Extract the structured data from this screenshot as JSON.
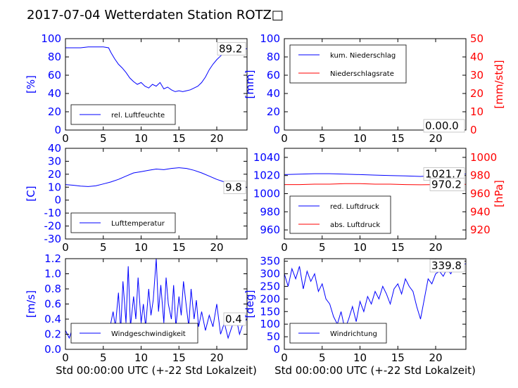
{
  "title": "2017-07-04 Wetterdaten Station ROTZ□",
  "colors": {
    "primary": "#0000ff",
    "secondary": "#ff0000",
    "axis": "#000000"
  },
  "chart_data": [
    {
      "id": "humidity",
      "type": "line",
      "ylabel": "[%]",
      "ylim": [
        0,
        100
      ],
      "yticks": [
        0,
        20,
        40,
        60,
        80,
        100
      ],
      "xlim": [
        0,
        24
      ],
      "xticks": [
        0,
        5,
        10,
        15,
        20
      ],
      "legend": [
        "rel. Luftfeuchte"
      ],
      "legend_position": "lower-left",
      "last_value": "89.2",
      "series": [
        {
          "name": "rel. Luftfeuchte",
          "color": "#0000ff",
          "x": [
            0,
            1,
            2,
            3,
            4,
            5,
            5.7,
            6,
            6.5,
            7,
            7.5,
            8,
            8.5,
            9,
            9.5,
            10,
            10.5,
            11,
            11.5,
            12,
            12.5,
            13,
            13.5,
            14,
            14.5,
            15,
            15.5,
            16,
            16.5,
            17,
            17.5,
            18,
            18.5,
            19,
            19.5,
            20,
            20.5,
            21,
            21.5,
            22,
            23,
            24
          ],
          "y": [
            90,
            90,
            90,
            91,
            91,
            91,
            90,
            85,
            78,
            72,
            68,
            63,
            57,
            53,
            50,
            52,
            48,
            46,
            50,
            48,
            52,
            45,
            47,
            44,
            42,
            43,
            42,
            43,
            44,
            46,
            48,
            52,
            58,
            66,
            72,
            77,
            81,
            85,
            86,
            87,
            88,
            89
          ]
        }
      ]
    },
    {
      "id": "precipitation",
      "type": "line",
      "ylabel": "[mm]",
      "ylabel_right": "[mm/std]",
      "ylim": [
        0,
        100
      ],
      "yticks": [
        0,
        20,
        40,
        60,
        80,
        100
      ],
      "ylim_right": [
        0,
        50
      ],
      "yticks_right": [
        0,
        10,
        20,
        30,
        40,
        50
      ],
      "xlim": [
        0,
        24
      ],
      "xticks": [
        0,
        5,
        10,
        15,
        20
      ],
      "legend": [
        "kum. Niederschlag",
        "Niederschlagsrate"
      ],
      "legend_position": "upper-left",
      "last_value": "0.0",
      "last_value_right": "0.0",
      "series": [
        {
          "name": "kum. Niederschlag",
          "color": "#0000ff",
          "x": [
            0,
            24
          ],
          "y": [
            0,
            0
          ]
        },
        {
          "name": "Niederschlagsrate",
          "color": "#ff0000",
          "axis": "right",
          "x": [
            0,
            24
          ],
          "y": [
            0,
            0
          ]
        }
      ]
    },
    {
      "id": "temperature",
      "type": "line",
      "ylabel": "[C]",
      "ylim": [
        -30,
        40
      ],
      "yticks": [
        -30,
        -20,
        -10,
        0,
        10,
        20,
        30,
        40
      ],
      "xlim": [
        0,
        24
      ],
      "xticks": [
        0,
        5,
        10,
        15,
        20
      ],
      "legend": [
        "Lufttemperatur"
      ],
      "legend_position": "lower-left",
      "last_value": "9.8",
      "series": [
        {
          "name": "Lufttemperatur",
          "color": "#0000ff",
          "x": [
            0,
            1,
            2,
            3,
            4,
            5,
            6,
            7,
            8,
            9,
            10,
            11,
            12,
            13,
            14,
            15,
            16,
            17,
            18,
            19,
            20,
            21,
            22,
            23,
            24
          ],
          "y": [
            12,
            11.5,
            10.8,
            10.5,
            11,
            12.5,
            14,
            16,
            18.5,
            21,
            22,
            23,
            24,
            23.5,
            24.5,
            25,
            24.5,
            23,
            21,
            18.5,
            16,
            14,
            12,
            10.5,
            9.8
          ]
        }
      ]
    },
    {
      "id": "pressure",
      "type": "line",
      "ylabel_right": "[hPa]",
      "ylim": [
        950,
        1050
      ],
      "yticks": [
        960,
        980,
        1000,
        1020,
        1040
      ],
      "ylim_right": [
        910,
        1010
      ],
      "yticks_right": [
        920,
        940,
        960,
        980,
        1000
      ],
      "xlim": [
        0,
        24
      ],
      "xticks": [
        0,
        5,
        10,
        15,
        20
      ],
      "legend": [
        "red. Luftdruck",
        "abs. Luftdruck"
      ],
      "legend_position": "lower-left",
      "last_value": "1021.7",
      "last_value_right": "970.2",
      "series": [
        {
          "name": "red. Luftdruck",
          "color": "#0000ff",
          "x": [
            0,
            2,
            4,
            6,
            8,
            10,
            12,
            14,
            16,
            18,
            20,
            22,
            24
          ],
          "y": [
            1021,
            1021.5,
            1022,
            1022,
            1021.5,
            1021,
            1020.5,
            1020,
            1019.5,
            1019,
            1020,
            1021,
            1021.7
          ]
        },
        {
          "name": "abs. Luftdruck",
          "color": "#ff0000",
          "axis": "right",
          "x": [
            0,
            2,
            4,
            6,
            8,
            10,
            12,
            14,
            16,
            18,
            20,
            22,
            24
          ],
          "y": [
            970,
            970,
            970.5,
            970.5,
            971,
            971,
            970.5,
            970.5,
            970,
            969.8,
            970,
            970.2,
            970.2
          ]
        }
      ]
    },
    {
      "id": "windspeed",
      "type": "line",
      "ylabel": "[m/s]",
      "xlabel": "Std 00:00:00 UTC (+-22 Std Lokalzeit)",
      "ylim": [
        0,
        1.2
      ],
      "yticks": [
        0.0,
        0.2,
        0.4,
        0.6,
        0.8,
        1.0,
        1.2
      ],
      "xlim": [
        0,
        24
      ],
      "xticks": [
        0,
        5,
        10,
        15,
        20
      ],
      "legend": [
        "Windgeschwindigkeit"
      ],
      "legend_position": "lower-center",
      "last_value": "0.4",
      "series": [
        {
          "name": "Windgeschwindigkeit",
          "color": "#0000ff",
          "x": [
            0,
            0.5,
            1,
            1.5,
            2,
            2.5,
            3,
            3.5,
            4,
            4.5,
            5,
            5.5,
            6,
            6.3,
            6.6,
            7,
            7.3,
            7.6,
            8,
            8.3,
            8.6,
            9,
            9.3,
            9.6,
            10,
            10.3,
            10.6,
            11,
            11.3,
            11.6,
            12,
            12.3,
            12.6,
            13,
            13.3,
            13.6,
            14,
            14.3,
            14.6,
            15,
            15.3,
            15.6,
            16,
            16.3,
            16.6,
            17,
            17.3,
            17.6,
            18,
            18.5,
            19,
            19.5,
            20,
            20.5,
            21,
            21.5,
            22,
            22.5,
            23,
            23.5,
            24
          ],
          "y": [
            0.25,
            0.15,
            0.3,
            0.2,
            0.28,
            0.18,
            0.25,
            0.2,
            0.3,
            0.15,
            0.25,
            0.2,
            0.35,
            0.5,
            0.3,
            0.75,
            0.25,
            0.9,
            0.35,
            1.1,
            0.3,
            0.7,
            0.4,
            0.95,
            0.35,
            0.6,
            0.3,
            0.8,
            0.45,
            0.65,
            1.2,
            0.5,
            0.85,
            0.35,
            0.95,
            0.6,
            0.4,
            0.85,
            0.3,
            0.7,
            0.45,
            0.9,
            0.55,
            0.3,
            0.8,
            0.4,
            0.65,
            0.3,
            0.5,
            0.25,
            0.45,
            0.3,
            0.6,
            0.2,
            0.35,
            0.15,
            0.3,
            0.45,
            0.2,
            0.35,
            0.4
          ]
        }
      ]
    },
    {
      "id": "winddirection",
      "type": "line",
      "ylabel": "[deg]",
      "xlabel": "Std 00:00:00 UTC (+-22 Std Lokalzeit)",
      "ylim": [
        0,
        360
      ],
      "yticks": [
        0,
        50,
        100,
        150,
        200,
        250,
        300,
        350
      ],
      "xlim": [
        0,
        24
      ],
      "xticks": [
        0,
        5,
        10,
        15,
        20
      ],
      "legend": [
        "Windrichtung"
      ],
      "legend_position": "lower-left",
      "last_value": "339.8",
      "series": [
        {
          "name": "Windrichtung",
          "color": "#0000ff",
          "x": [
            0,
            0.5,
            1,
            1.5,
            2,
            2.5,
            3,
            3.5,
            4,
            4.5,
            5,
            5.5,
            6,
            6.5,
            7,
            7.5,
            8,
            8.5,
            9,
            9.5,
            10,
            10.5,
            11,
            11.5,
            12,
            12.5,
            13,
            13.5,
            14,
            14.5,
            15,
            15.5,
            16,
            16.5,
            17,
            17.5,
            18,
            18.5,
            19,
            19.5,
            20,
            20.5,
            21,
            21.5,
            22,
            22.5,
            23,
            23.5,
            24
          ],
          "y": [
            300,
            250,
            320,
            280,
            330,
            240,
            310,
            270,
            300,
            230,
            260,
            200,
            180,
            130,
            100,
            150,
            80,
            120,
            170,
            110,
            190,
            150,
            210,
            180,
            230,
            200,
            250,
            220,
            180,
            240,
            260,
            220,
            280,
            250,
            230,
            170,
            120,
            200,
            280,
            260,
            300,
            310,
            290,
            320,
            300,
            330,
            320,
            335,
            340
          ]
        }
      ]
    }
  ]
}
